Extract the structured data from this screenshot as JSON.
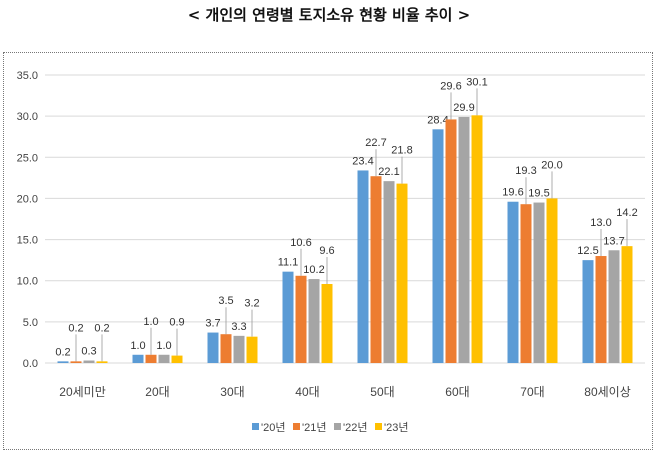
{
  "chart_data": {
    "type": "bar",
    "title": "< 개인의 연령별 토지소유 현황 비율 추이 >",
    "xlabel": "",
    "ylabel": "",
    "ylim": [
      0,
      35
    ],
    "yticks": [
      "0.0",
      "5.0",
      "10.0",
      "15.0",
      "20.0",
      "25.0",
      "30.0",
      "35.0"
    ],
    "grid": true,
    "legend_position": "bottom",
    "categories": [
      "20세미만",
      "20대",
      "30대",
      "40대",
      "50대",
      "60대",
      "70대",
      "80세이상"
    ],
    "series": [
      {
        "name": "'20년",
        "color": "#5B9BD5",
        "values": [
          0.2,
          1.0,
          3.7,
          11.1,
          23.4,
          28.4,
          19.6,
          12.5
        ]
      },
      {
        "name": "'21년",
        "color": "#ED7D31",
        "values": [
          0.2,
          1.0,
          3.5,
          10.6,
          22.7,
          29.6,
          19.3,
          13.0
        ]
      },
      {
        "name": "'22년",
        "color": "#A5A5A5",
        "values": [
          0.3,
          1.0,
          3.3,
          10.2,
          22.1,
          29.9,
          19.5,
          13.7
        ]
      },
      {
        "name": "'23년",
        "color": "#FFC000",
        "values": [
          0.2,
          0.9,
          3.2,
          9.6,
          21.8,
          30.1,
          20.0,
          14.2
        ]
      }
    ]
  }
}
